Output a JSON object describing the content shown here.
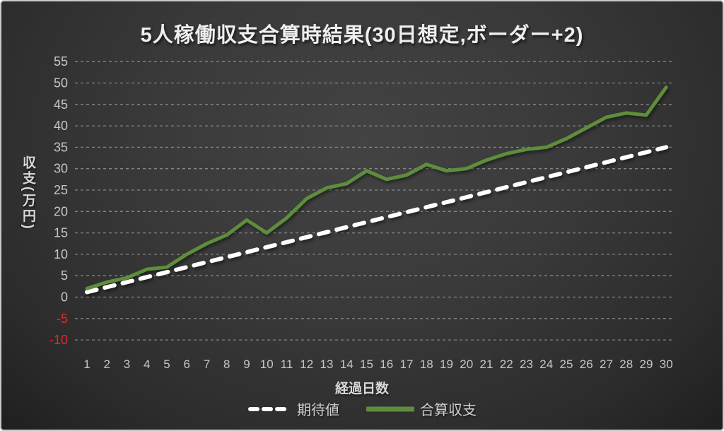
{
  "title": "5人稼働収支合算時結果(30日想定,ボーダー+2)",
  "colors": {
    "expected_line": "#ffffff",
    "total_line": "#5e8e3c",
    "gridline": "#9a9a9a",
    "tick_label": "#c6c6c6",
    "negative_tick_label": "#dd2a2a"
  },
  "y_axis": {
    "title": "収支(万円)",
    "ticks": [
      55,
      50,
      45,
      40,
      35,
      30,
      25,
      20,
      15,
      10,
      5,
      0,
      -5,
      -10
    ]
  },
  "x_axis": {
    "title": "経過日数",
    "ticks": [
      1,
      2,
      3,
      4,
      5,
      6,
      7,
      8,
      9,
      10,
      11,
      12,
      13,
      14,
      15,
      16,
      17,
      18,
      19,
      20,
      21,
      22,
      23,
      24,
      25,
      26,
      27,
      28,
      29,
      30
    ]
  },
  "legend": {
    "items": [
      {
        "id": "expected",
        "label": "期待値",
        "style": "dashed",
        "color": "#ffffff"
      },
      {
        "id": "total",
        "label": "合算収支",
        "style": "solid",
        "color": "#5e8e3c"
      }
    ]
  },
  "chart_data": {
    "type": "line",
    "title": "5人稼働収支合算時結果(30日想定,ボーダー+2)",
    "xlabel": "経過日数",
    "ylabel": "収支(万円)",
    "x": [
      1,
      2,
      3,
      4,
      5,
      6,
      7,
      8,
      9,
      10,
      11,
      12,
      13,
      14,
      15,
      16,
      17,
      18,
      19,
      20,
      21,
      22,
      23,
      24,
      25,
      26,
      27,
      28,
      29,
      30
    ],
    "ylim": [
      -10,
      55
    ],
    "ytick_step": 5,
    "grid": true,
    "legend_position": "bottom",
    "series": [
      {
        "id": "expected",
        "name": "期待値",
        "style": "dashed",
        "color": "#ffffff",
        "values": [
          1.17,
          2.33,
          3.5,
          4.67,
          5.83,
          7,
          8.17,
          9.33,
          10.5,
          11.67,
          12.83,
          14,
          15.17,
          16.33,
          17.5,
          18.67,
          19.83,
          21,
          22.17,
          23.33,
          24.5,
          25.67,
          26.83,
          28,
          29.17,
          30.33,
          31.5,
          32.67,
          33.83,
          35
        ]
      },
      {
        "id": "total",
        "name": "合算収支",
        "style": "solid",
        "color": "#5e8e3c",
        "values": [
          2,
          3.5,
          4.5,
          6.5,
          7,
          10,
          12.5,
          14.5,
          18,
          15,
          18.5,
          23,
          25.5,
          26.5,
          29.5,
          27.5,
          28.5,
          31,
          29.5,
          30,
          32,
          33.5,
          34.5,
          35,
          37,
          39.5,
          42,
          43,
          42.5,
          49
        ]
      }
    ]
  }
}
